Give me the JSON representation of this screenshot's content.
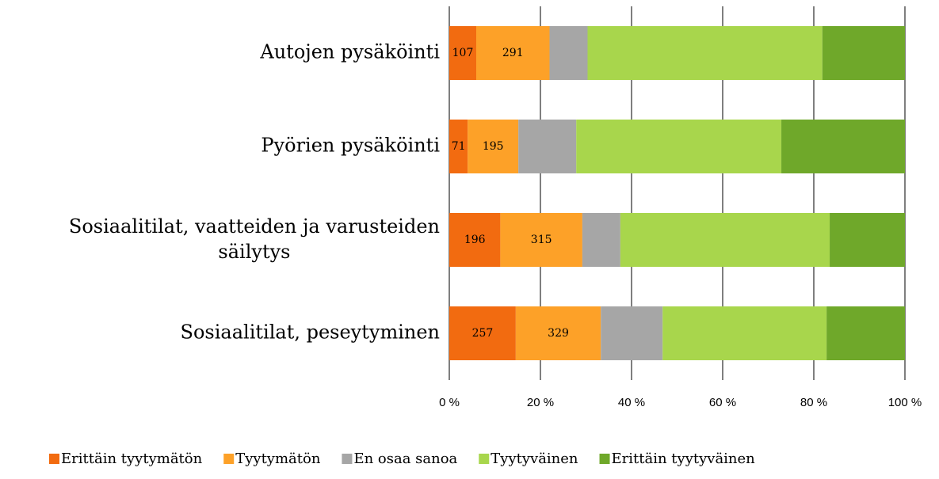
{
  "chart_data": {
    "type": "bar",
    "orientation": "horizontal",
    "stacking": "percent",
    "categories": [
      "Autojen pysäköinti",
      "Pyörien pysäköinti",
      "Sosiaalitilat, vaatteiden ja varusteiden\nsäilytys",
      "Sosiaalitilat, peseytyminen"
    ],
    "series": [
      {
        "name": "Erittäin tyytymätön",
        "color": "#f26b10",
        "data_labels": true,
        "values": [
          107,
          71,
          196,
          257
        ]
      },
      {
        "name": "Tyytymätön",
        "color": "#fda128",
        "data_labels": true,
        "values": [
          291,
          195,
          315,
          329
        ]
      },
      {
        "name": "En osaa sanoa",
        "color": "#a6a6a6",
        "data_labels": false,
        "values": [
          151,
          223,
          146,
          239
        ]
      },
      {
        "name": "Tyytyväinen",
        "color": "#a8d64c",
        "data_labels": false,
        "values": [
          932,
          790,
          804,
          634
        ]
      },
      {
        "name": "Erittäin tyytyväinen",
        "color": "#6fa82a",
        "data_labels": false,
        "values": [
          328,
          476,
          289,
          303
        ]
      }
    ],
    "xlim": [
      0,
      100
    ],
    "xticks": [
      {
        "value": 0,
        "label": "0 %"
      },
      {
        "value": 20,
        "label": "20 %"
      },
      {
        "value": 40,
        "label": "40 %"
      },
      {
        "value": 60,
        "label": "60 %"
      },
      {
        "value": 80,
        "label": "80 %"
      },
      {
        "value": 100,
        "label": "100 %"
      }
    ],
    "grid": true,
    "legend": "bottom"
  }
}
